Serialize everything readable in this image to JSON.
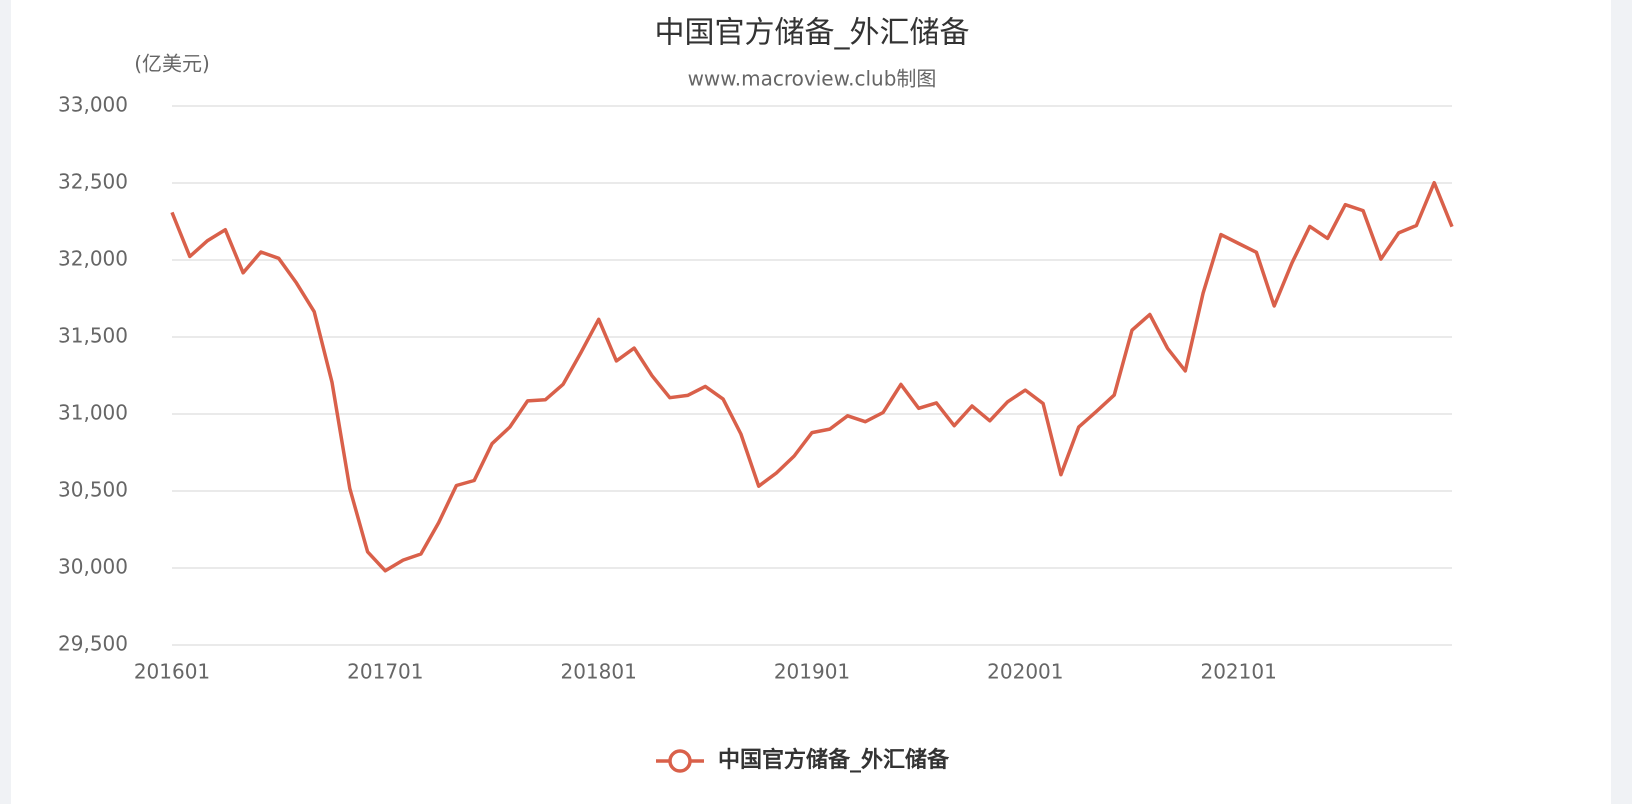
{
  "chart_data": {
    "type": "line",
    "title": "中国官方储备_外汇储备",
    "subtitle": "www.macroview.club制图",
    "y_axis_label": "(亿美元)",
    "categories": [
      "201601",
      null,
      null,
      null,
      null,
      null,
      null,
      null,
      null,
      null,
      null,
      null,
      "201701",
      null,
      null,
      null,
      null,
      null,
      null,
      null,
      null,
      null,
      null,
      null,
      "201801",
      null,
      null,
      null,
      null,
      null,
      null,
      null,
      null,
      null,
      null,
      null,
      "201901",
      null,
      null,
      null,
      null,
      null,
      null,
      null,
      null,
      null,
      null,
      null,
      "202001",
      null,
      null,
      null,
      null,
      null,
      null,
      null,
      null,
      null,
      null,
      null,
      "202101",
      null,
      null,
      null,
      null,
      null,
      null,
      null,
      null,
      null,
      null,
      null,
      null
    ],
    "series": [
      {
        "name": "中国官方储备_外汇储备",
        "color": "#d9604a",
        "values": [
          32309,
          32023,
          32126,
          32197,
          31917,
          32052,
          32011,
          31851,
          31664,
          31206,
          30516,
          30105,
          29982,
          30051,
          30091,
          30295,
          30536,
          30568,
          30807,
          30915,
          31085,
          31092,
          31193,
          31399,
          31615,
          31345,
          31428,
          31249,
          31106,
          31121,
          31179,
          31097,
          30870,
          30531,
          30617,
          30727,
          30879,
          30902,
          30988,
          30950,
          31010,
          31192,
          31037,
          31072,
          30924,
          31052,
          30956,
          31079,
          31155,
          31068,
          30606,
          30915,
          31017,
          31123,
          31544,
          31646,
          31426,
          31280,
          31785,
          32165,
          32107,
          32050,
          31701,
          31982,
          32218,
          32140,
          32359,
          32321,
          32006,
          32176,
          32224,
          32502,
          32216
        ]
      }
    ],
    "ylim": [
      29500,
      33000
    ],
    "yticks": [
      {
        "value": 29500,
        "label": "29,500"
      },
      {
        "value": 30000,
        "label": "30,000"
      },
      {
        "value": 30500,
        "label": "30,500"
      },
      {
        "value": 31000,
        "label": "31,000"
      },
      {
        "value": 31500,
        "label": "31,500"
      },
      {
        "value": 32000,
        "label": "32,000"
      },
      {
        "value": 32500,
        "label": "32,500"
      },
      {
        "value": 33000,
        "label": "33,000"
      }
    ],
    "grid": true,
    "legend": "bottom"
  }
}
